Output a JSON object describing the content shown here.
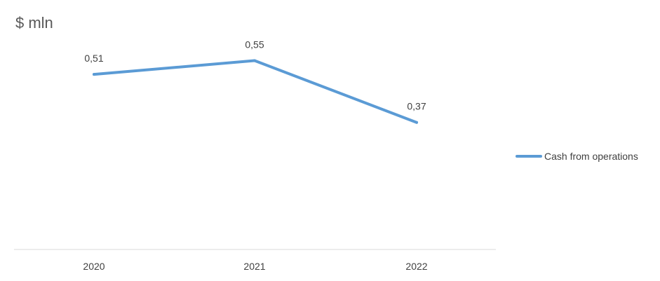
{
  "chart_data": {
    "type": "line",
    "unit_label": "$ mln",
    "categories": [
      "2020",
      "2021",
      "2022"
    ],
    "series": [
      {
        "name": "Cash from operations",
        "values": [
          0.51,
          0.55,
          0.37
        ],
        "color": "#5b9bd5"
      }
    ],
    "data_labels": [
      "0,51",
      "0,55",
      "0,37"
    ],
    "ylim": [
      0,
      0.75
    ],
    "grid": false,
    "legend_position": "right",
    "axis_color": "#d9d9d9",
    "text_color": "#404040"
  }
}
